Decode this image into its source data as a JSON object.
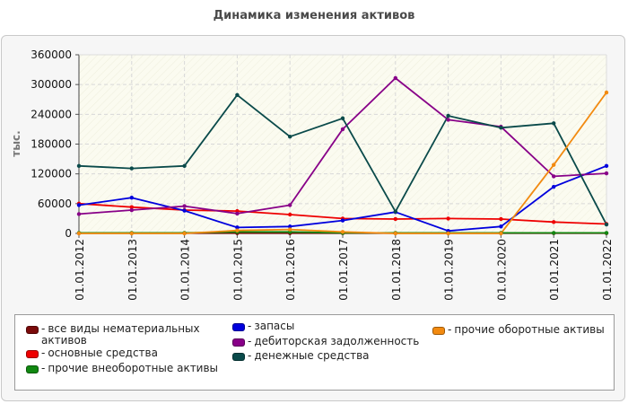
{
  "chart_data": {
    "type": "line",
    "title": "Динамика изменения активов",
    "ylabel": "тыс.",
    "ylim": [
      0,
      360000
    ],
    "yticks": [
      0,
      60000,
      120000,
      180000,
      240000,
      300000,
      360000
    ],
    "ytick_labels": [
      "0",
      "60000",
      "120000",
      "180000",
      "240000",
      "300000",
      "360000"
    ],
    "categories": [
      "01.01.2012",
      "01.01.2013",
      "01.01.2014",
      "01.01.2015",
      "01.01.2016",
      "01.01.2017",
      "01.01.2018",
      "01.01.2019",
      "01.01.2020",
      "01.01.2021",
      "01.01.2022"
    ],
    "grid": true,
    "legend_position": "bottom",
    "series": [
      {
        "name": "все виды нематериальных активов",
        "color": "#7a0a0a",
        "values": [
          500,
          500,
          500,
          500,
          500,
          500,
          500,
          500,
          500,
          500,
          500
        ]
      },
      {
        "name": "основные средства",
        "color": "#ee0000",
        "values": [
          60000,
          53000,
          47000,
          45000,
          38000,
          30000,
          29000,
          30000,
          29000,
          23000,
          19000
        ]
      },
      {
        "name": "прочие внеоборотные активы",
        "color": "#118811",
        "values": [
          1000,
          1000,
          1000,
          3000,
          3000,
          1000,
          1000,
          1000,
          1000,
          1000,
          1000
        ]
      },
      {
        "name": "запасы",
        "color": "#0000dd",
        "values": [
          57000,
          72000,
          46000,
          12000,
          14000,
          26000,
          43000,
          5000,
          14000,
          94000,
          136000
        ]
      },
      {
        "name": "дебиторская задолженность",
        "color": "#880088",
        "values": [
          39000,
          47000,
          55000,
          40000,
          57000,
          210000,
          313000,
          229000,
          215000,
          115000,
          121000
        ]
      },
      {
        "name": "денежные средства",
        "color": "#0a4a4a",
        "values": [
          136000,
          131000,
          136000,
          279000,
          195000,
          232000,
          44000,
          237000,
          213000,
          222000,
          18000
        ]
      },
      {
        "name": "прочие оборотные активы",
        "color": "#f28a10",
        "values": [
          0,
          0,
          0,
          6000,
          8000,
          3000,
          0,
          0,
          0,
          138000,
          284000
        ]
      }
    ]
  },
  "legend": {
    "items": [
      {
        "text": "все виды нематериальных активов",
        "color": "#7a0a0a"
      },
      {
        "text": "основные средства",
        "color": "#ee0000"
      },
      {
        "text": "прочие внеоборотные активы",
        "color": "#118811"
      },
      {
        "text": "запасы",
        "color": "#0000dd"
      },
      {
        "text": "дебиторская задолженность",
        "color": "#880088"
      },
      {
        "text": "денежные средства",
        "color": "#0a4a4a"
      },
      {
        "text": "прочие оборотные активы",
        "color": "#f28a10"
      }
    ]
  }
}
